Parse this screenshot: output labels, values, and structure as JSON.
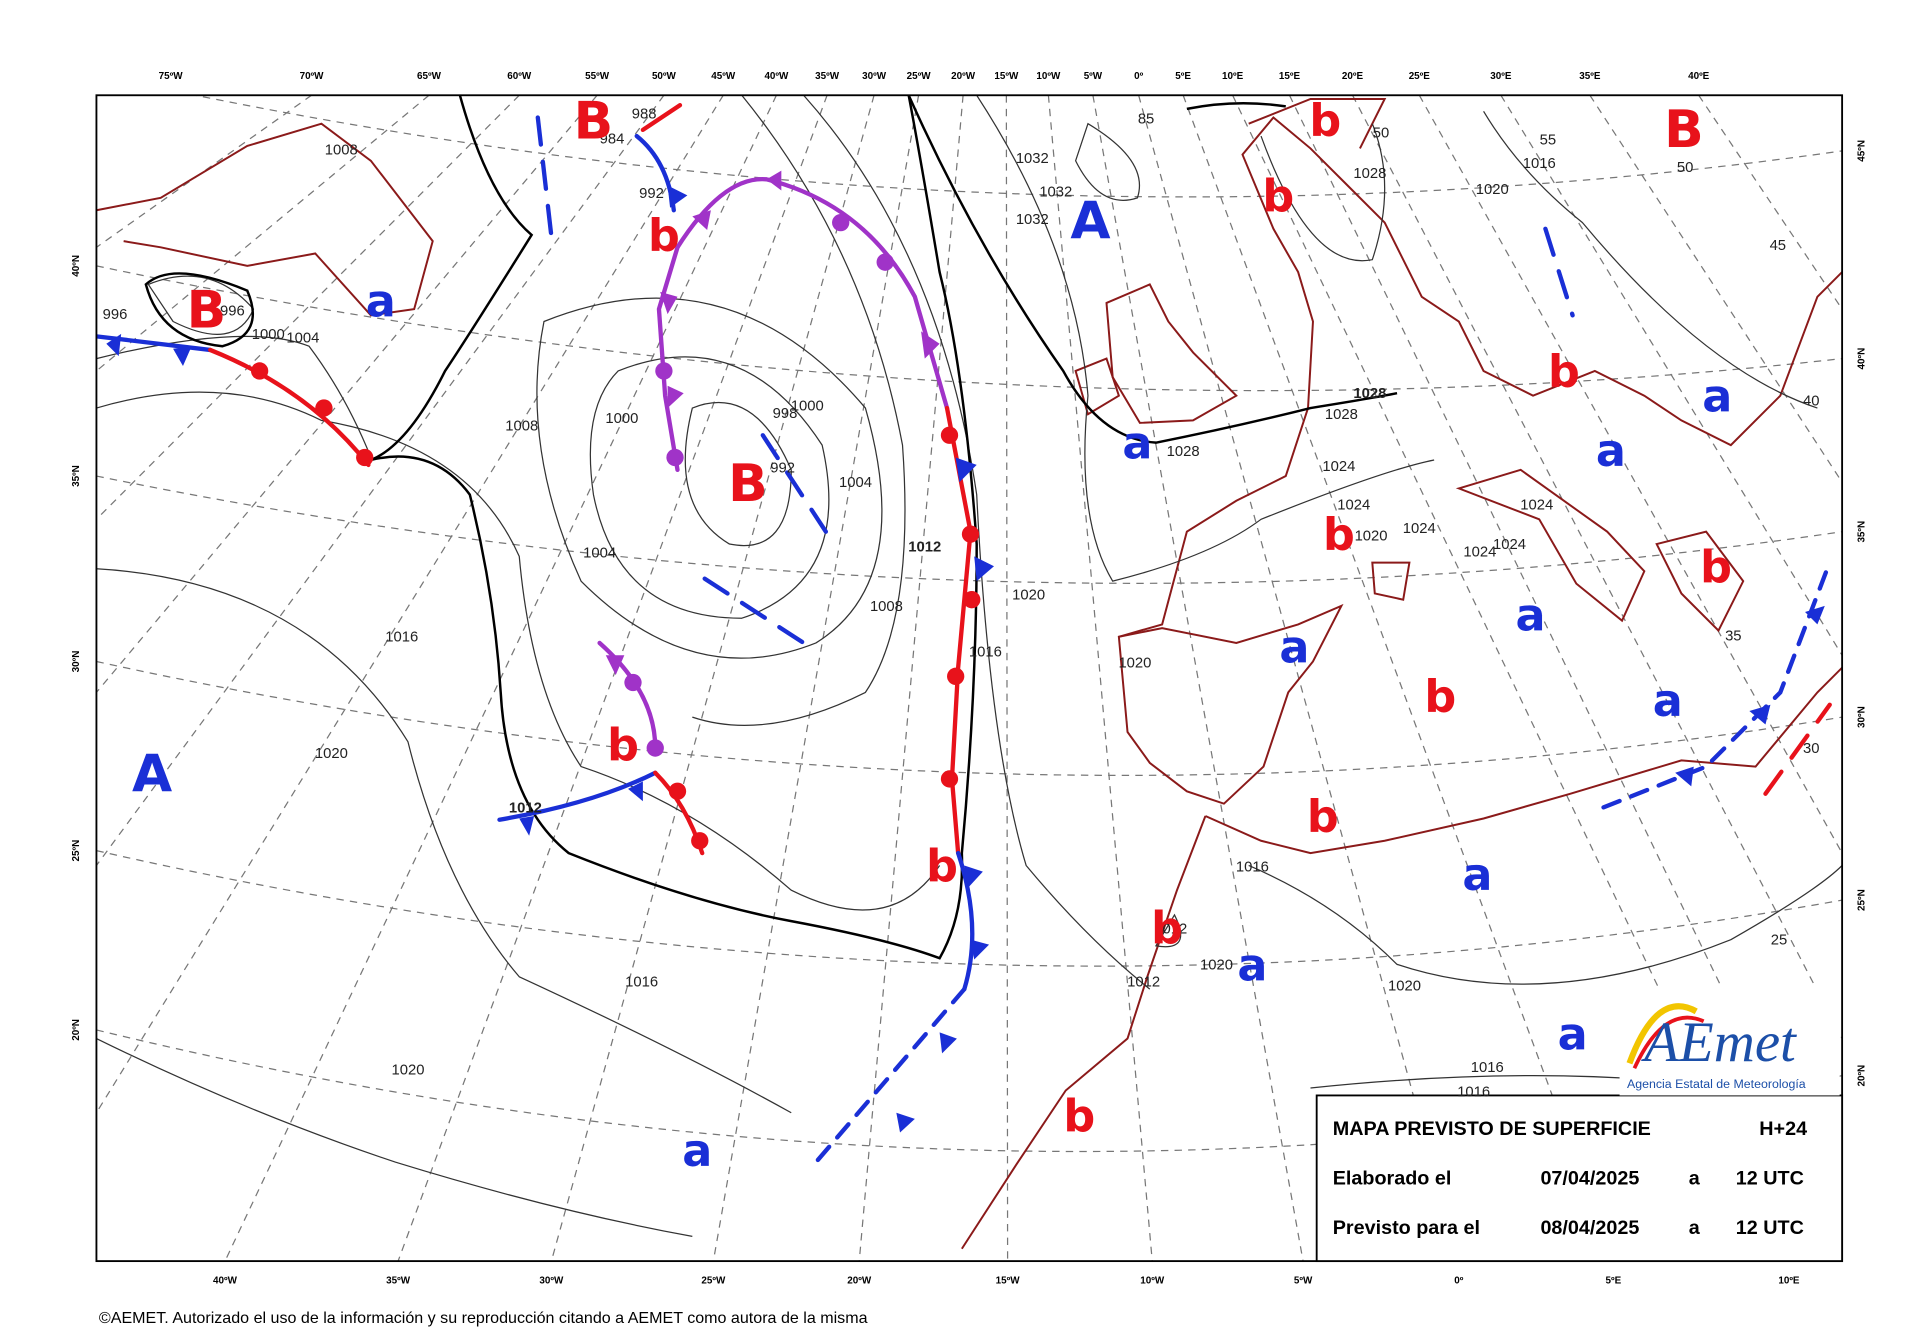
{
  "map": {
    "longitudes_top": [
      "75ºW",
      "70ºW",
      "65ºW",
      "60ºW",
      "55ºW",
      "50ºW",
      "45ºW",
      "40ºW",
      "35ºW",
      "30ºW",
      "25ºW",
      "20ºW",
      "15ºW",
      "10ºW",
      "5ºW",
      "0º",
      "5ºE",
      "10ºE",
      "15ºE",
      "20ºE",
      "25ºE",
      "30ºE",
      "35ºE",
      "40ºE"
    ],
    "longitudes_bottom": [
      "40ºW",
      "35ºW",
      "30ºW",
      "25ºW",
      "20ºW",
      "15ºW",
      "10ºW",
      "5ºW",
      "0º",
      "5ºE",
      "10ºE"
    ],
    "latitudes_left": [
      "40ºN",
      "35ºN",
      "30ºN",
      "25ºN",
      "20ºN"
    ],
    "latitudes_right": [
      "45ºN",
      "40ºN",
      "35ºN",
      "30ºN",
      "25ºN",
      "20ºN"
    ],
    "isobar_labels": [
      1008,
      996,
      996,
      1000,
      1004,
      1008,
      1000,
      998,
      1000,
      992,
      1004,
      1012,
      1004,
      1008,
      1016,
      1020,
      1016,
      1020,
      1020,
      1012,
      1016,
      1020,
      1032,
      1032,
      1032,
      1028,
      1016,
      1020,
      1028,
      1028,
      1028,
      1024,
      1024,
      1020,
      1024,
      1024,
      1024,
      1024,
      1016,
      1012,
      1020,
      1012,
      1020,
      1016,
      1016,
      984,
      988,
      992,
      85,
      55,
      50,
      50,
      45,
      40,
      35,
      30,
      25
    ],
    "systems": [
      {
        "label": "B",
        "color": "#e8121b"
      },
      {
        "label": "B",
        "color": "#e8121b"
      },
      {
        "label": "B",
        "color": "#e8121b"
      },
      {
        "label": "B",
        "color": "#e8121b"
      },
      {
        "label": "b",
        "color": "#e8121b"
      },
      {
        "label": "b",
        "color": "#e8121b"
      },
      {
        "label": "b",
        "color": "#e8121b"
      },
      {
        "label": "b",
        "color": "#e8121b"
      },
      {
        "label": "b",
        "color": "#e8121b"
      },
      {
        "label": "b",
        "color": "#e8121b"
      },
      {
        "label": "b",
        "color": "#e8121b"
      },
      {
        "label": "b",
        "color": "#e8121b"
      },
      {
        "label": "b",
        "color": "#e8121b"
      },
      {
        "label": "b",
        "color": "#e8121b"
      },
      {
        "label": "b",
        "color": "#e8121b"
      },
      {
        "label": "b",
        "color": "#e8121b"
      },
      {
        "label": "A",
        "color": "#1a2fd6"
      },
      {
        "label": "A",
        "color": "#1a2fd6"
      },
      {
        "label": "a",
        "color": "#1a2fd6"
      },
      {
        "label": "a",
        "color": "#1a2fd6"
      },
      {
        "label": "a",
        "color": "#1a2fd6"
      },
      {
        "label": "a",
        "color": "#1a2fd6"
      },
      {
        "label": "a",
        "color": "#1a2fd6"
      },
      {
        "label": "a",
        "color": "#1a2fd6"
      },
      {
        "label": "a",
        "color": "#1a2fd6"
      },
      {
        "label": "a",
        "color": "#1a2fd6"
      },
      {
        "label": "a",
        "color": "#1a2fd6"
      },
      {
        "label": "a",
        "color": "#1a2fd6"
      },
      {
        "label": "a",
        "color": "#1a2fd6"
      }
    ]
  },
  "info_box": {
    "title": "MAPA PREVISTO DE SUPERFICIE",
    "lead": "H+24",
    "elaborated": {
      "label": "Elaborado el",
      "date": "07/04/2025",
      "at": "a",
      "time": "12 UTC"
    },
    "valid": {
      "label": "Previsto para el",
      "date": "08/04/2025",
      "at": "a",
      "time": "12 UTC"
    }
  },
  "logo": {
    "name": "AEmet",
    "subtitle": "Agencia Estatal de Meteorología"
  },
  "footer": "©AEMET. Autorizado el uso de la información y su reproducción citando a AEMET como autora de la misma"
}
